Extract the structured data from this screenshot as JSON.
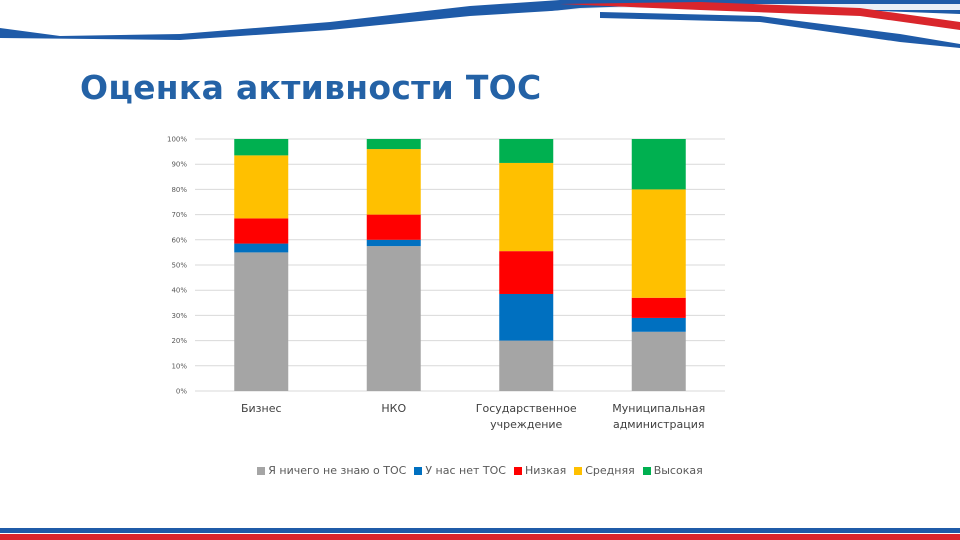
{
  "slide": {
    "title": "Оценка активности ТОС"
  },
  "colors": {
    "band_blue": "#1f5ba8",
    "band_red": "#d9262c",
    "title": "#2462a6"
  },
  "chart_data": {
    "type": "bar",
    "stacked": true,
    "categories": [
      [
        "Бизнес"
      ],
      [
        "НКО"
      ],
      [
        "Государственное",
        "учреждение"
      ],
      [
        "Муниципальная",
        "администрация"
      ]
    ],
    "series": [
      {
        "name": "Я ничего не знаю о ТОС",
        "color": "#a5a5a5",
        "values": [
          55,
          57.5,
          20,
          23.5
        ]
      },
      {
        "name": "У нас нет ТОС",
        "color": "#0070c0",
        "values": [
          3.5,
          2.5,
          18.5,
          5.5
        ]
      },
      {
        "name": "Низкая",
        "color": "#ff0000",
        "values": [
          10,
          10,
          17,
          8
        ]
      },
      {
        "name": "Средняя",
        "color": "#ffc000",
        "values": [
          25,
          26,
          35,
          43
        ]
      },
      {
        "name": "Высокая",
        "color": "#00b050",
        "values": [
          6.5,
          4,
          9.5,
          20
        ]
      }
    ],
    "ylim": [
      0,
      100
    ],
    "yticks": [
      "0%",
      "10%",
      "20%",
      "30%",
      "40%",
      "50%",
      "60%",
      "70%",
      "80%",
      "90%",
      "100%"
    ],
    "grid": true,
    "legend_position": "bottom"
  }
}
